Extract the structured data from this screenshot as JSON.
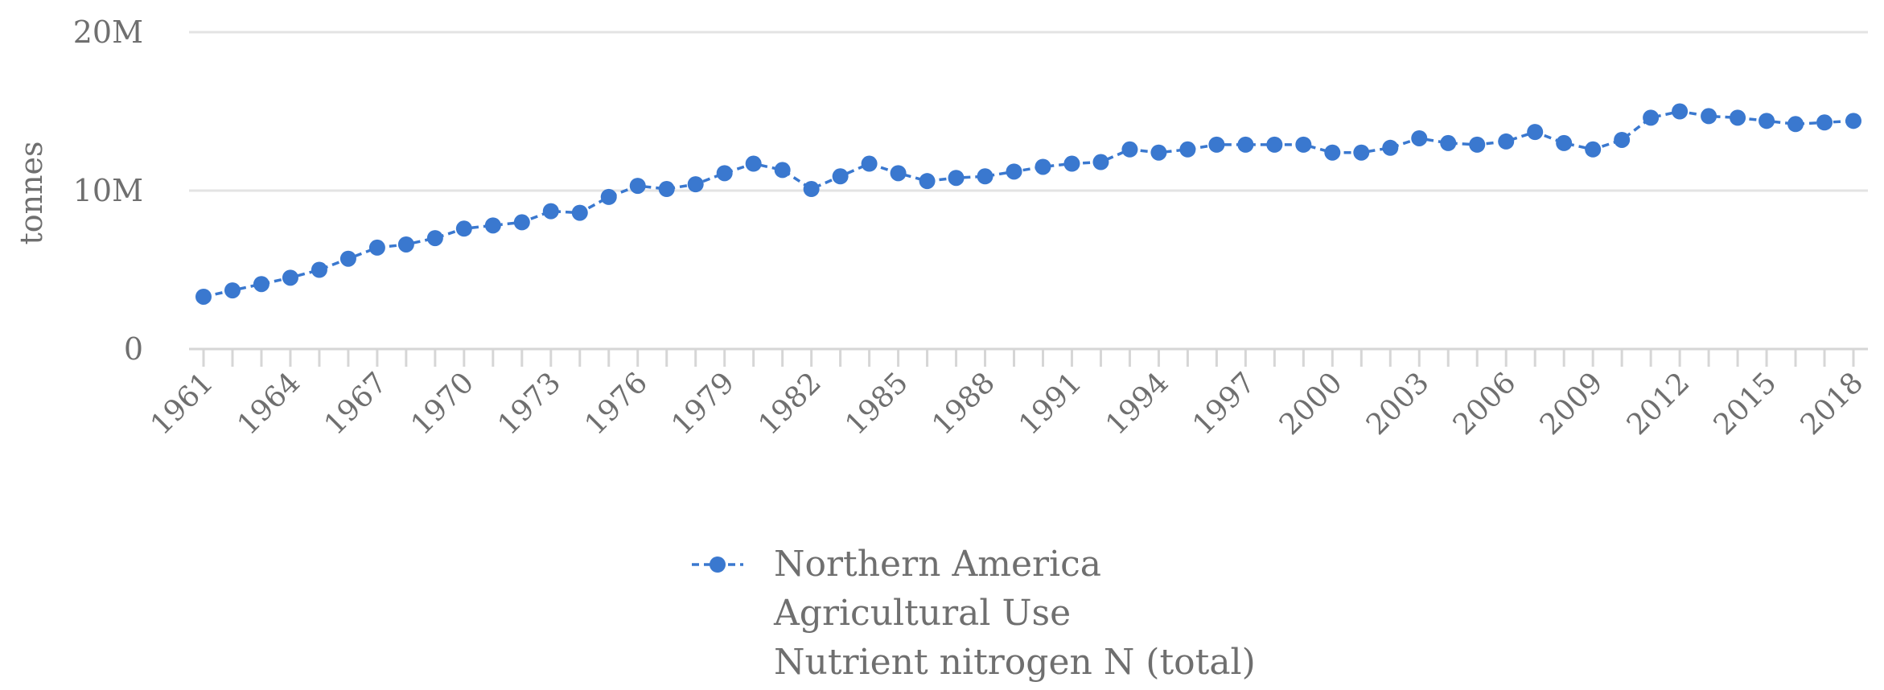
{
  "chart_data": {
    "type": "line",
    "ylabel": "tonnes",
    "xlabel": "",
    "title": "",
    "ylim": [
      0,
      20000000
    ],
    "y_ticks": [
      {
        "value": 0,
        "label": "0"
      },
      {
        "value": 10000000,
        "label": "10M"
      },
      {
        "value": 20000000,
        "label": "20M"
      }
    ],
    "x_tick_labels": [
      "1961",
      "1964",
      "1967",
      "1970",
      "1973",
      "1976",
      "1979",
      "1982",
      "1985",
      "1988",
      "1991",
      "1994",
      "1997",
      "2000",
      "2003",
      "2006",
      "2009",
      "2012",
      "2015",
      "2018"
    ],
    "grid": true,
    "legend_position": "bottom-center",
    "series": [
      {
        "name_lines": [
          "Northern America",
          "Agricultural Use",
          "Nutrient nitrogen N (total)"
        ],
        "color": "#3a78cf",
        "x": [
          1961,
          1962,
          1963,
          1964,
          1965,
          1966,
          1967,
          1968,
          1969,
          1970,
          1971,
          1972,
          1973,
          1974,
          1975,
          1976,
          1977,
          1978,
          1979,
          1980,
          1981,
          1982,
          1983,
          1984,
          1985,
          1986,
          1987,
          1988,
          1989,
          1990,
          1991,
          1992,
          1993,
          1994,
          1995,
          1996,
          1997,
          1998,
          1999,
          2000,
          2001,
          2002,
          2003,
          2004,
          2005,
          2006,
          2007,
          2008,
          2009,
          2010,
          2011,
          2012,
          2013,
          2014,
          2015,
          2016,
          2017,
          2018
        ],
        "values": [
          3300000,
          3700000,
          4100000,
          4500000,
          5000000,
          5700000,
          6400000,
          6600000,
          7000000,
          7600000,
          7800000,
          8000000,
          8700000,
          8600000,
          9600000,
          10300000,
          10100000,
          10400000,
          11100000,
          11700000,
          11300000,
          10100000,
          10900000,
          11700000,
          11100000,
          10600000,
          10800000,
          10900000,
          11200000,
          11500000,
          11700000,
          11800000,
          12600000,
          12400000,
          12600000,
          12900000,
          12900000,
          12900000,
          12900000,
          12400000,
          12400000,
          12700000,
          13300000,
          13000000,
          12900000,
          13100000,
          13700000,
          13000000,
          12600000,
          13200000,
          14600000,
          15000000,
          14700000,
          14600000,
          14400000,
          14200000,
          14300000,
          14400000
        ]
      }
    ]
  }
}
